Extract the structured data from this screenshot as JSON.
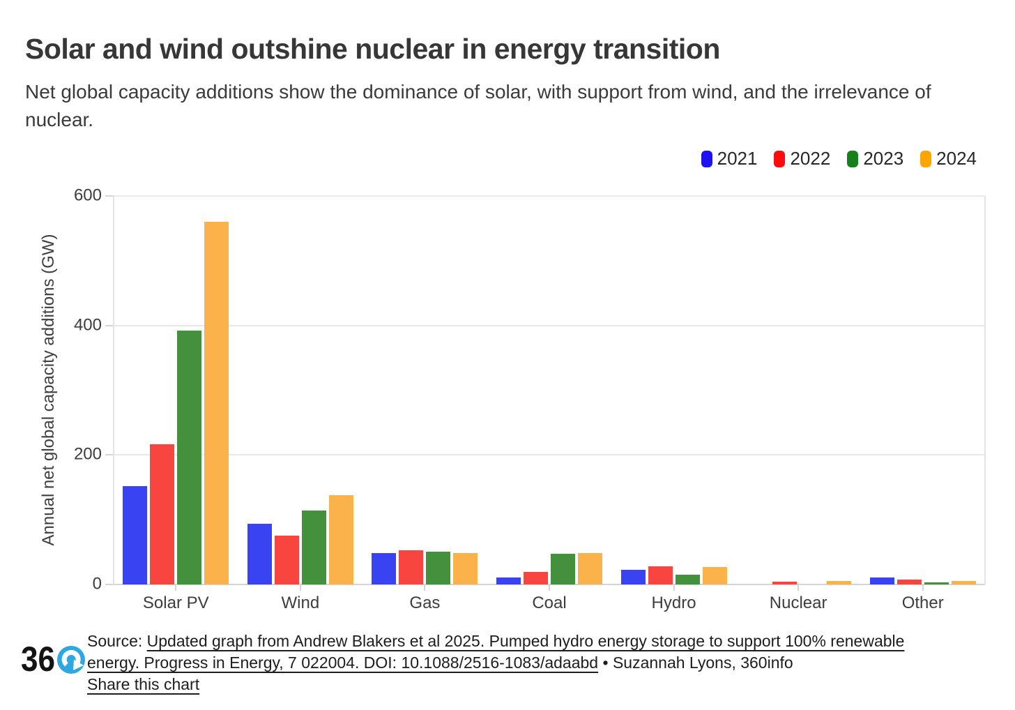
{
  "chart_data": {
    "type": "bar",
    "title": "Solar and wind outshine nuclear in energy transition",
    "subtitle": "Net global capacity additions show the dominance of solar, with support from wind, and the irrelevance of nuclear.",
    "categories": [
      "Solar PV",
      "Wind",
      "Gas",
      "Coal",
      "Hydro",
      "Nuclear",
      "Other"
    ],
    "series": [
      {
        "name": "2021",
        "legend_color": "#1d12f0",
        "bar_color": "#3a43f2",
        "values": [
          152,
          94,
          48,
          11,
          23,
          0,
          11
        ]
      },
      {
        "name": "2022",
        "legend_color": "#fb0d0d",
        "bar_color": "#f94540",
        "values": [
          217,
          75,
          53,
          19,
          28,
          4,
          8
        ]
      },
      {
        "name": "2023",
        "legend_color": "#15801c",
        "bar_color": "#43913d",
        "values": [
          392,
          114,
          51,
          47,
          15,
          0,
          3
        ]
      },
      {
        "name": "2024",
        "legend_color": "#fea502",
        "bar_color": "#fbb24b",
        "values": [
          560,
          138,
          49,
          49,
          27,
          5,
          5
        ]
      }
    ],
    "xlabel": "",
    "ylabel": "Annual net global capacity additions (GW)",
    "ylim": [
      0,
      600
    ],
    "yticks": [
      0,
      200,
      400,
      600
    ],
    "grid": true,
    "legend_position": "top-right"
  },
  "source": {
    "prefix": "Source: ",
    "citation_line1": "Updated graph from Andrew Blakers et al 2025. Pumped hydro energy storage to support 100% renewable",
    "citation_line2": "energy. Progress in Energy, 7 022004. DOI: 10.1088/2516-1083/adaabd",
    "byline": " • Suzannah Lyons, 360info",
    "share_label": "Share this chart",
    "logo_text": "36"
  },
  "colors": {
    "background": "#ffffff",
    "title_text": "#373737",
    "gridline": "#e9e9e9",
    "axis_line": "#d5d5d5",
    "logo_blue": "#2fa8e1",
    "logo_black": "#141414"
  }
}
